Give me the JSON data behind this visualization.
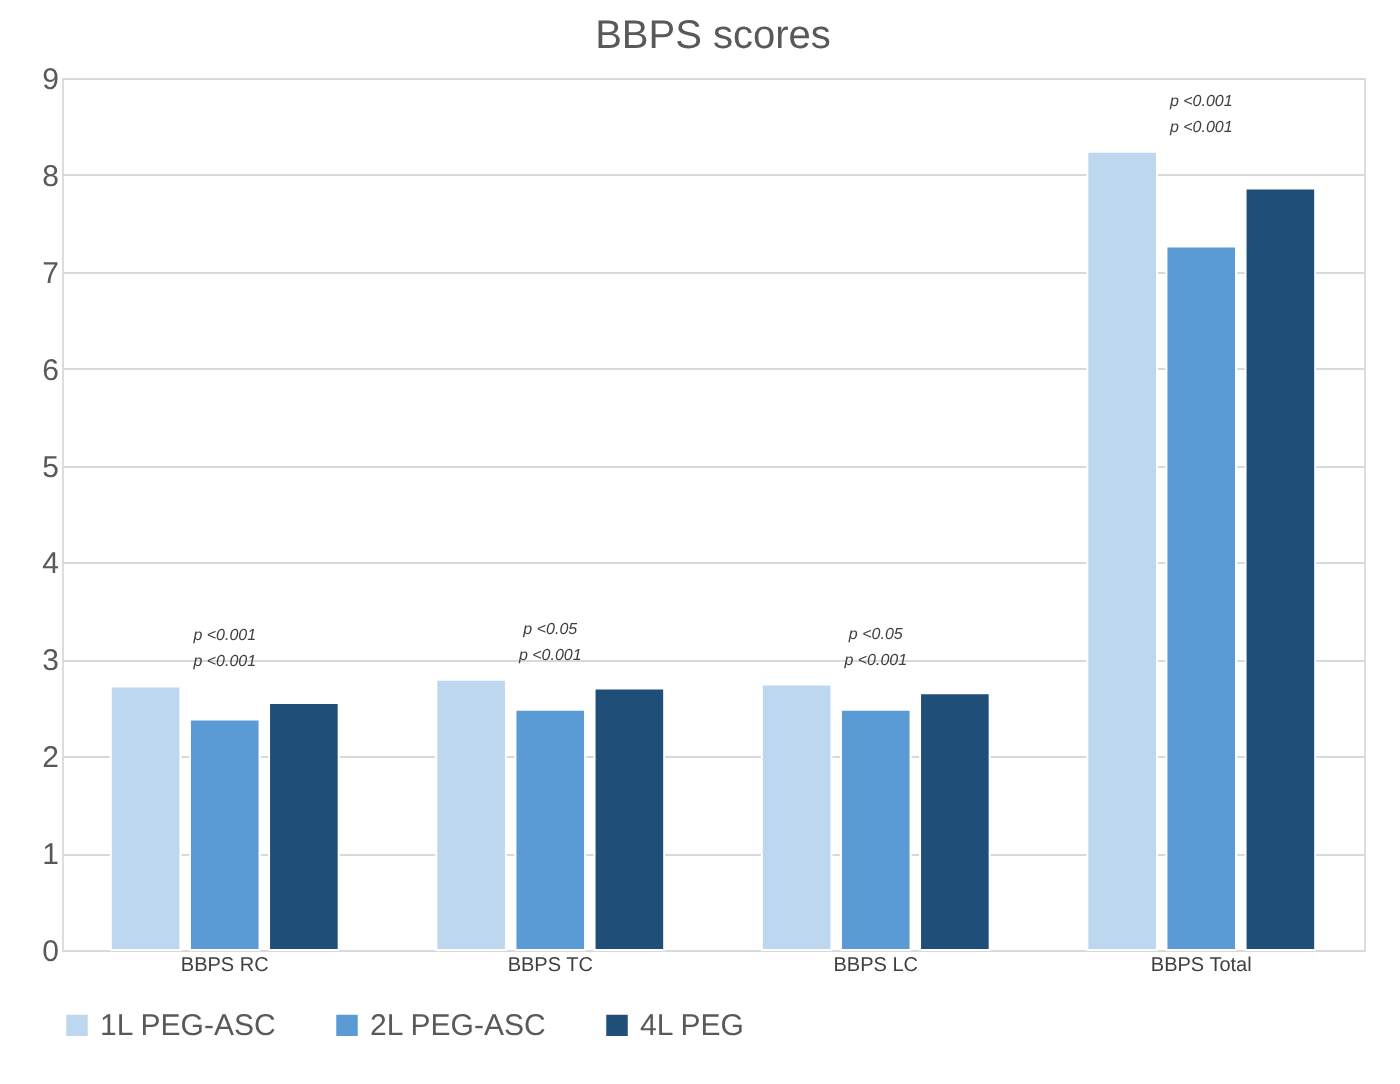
{
  "chart_data": {
    "type": "bar",
    "title": "BBPS scores",
    "categories": [
      "BBPS RC",
      "BBPS TC",
      "BBPS LC",
      "BBPS Total"
    ],
    "series": [
      {
        "name": "1L PEG-ASC",
        "color": "#bdd7ee",
        "values": [
          2.72,
          2.79,
          2.74,
          8.24
        ]
      },
      {
        "name": "2L PEG-ASC",
        "color": "#5b9bd5",
        "values": [
          2.38,
          2.48,
          2.48,
          7.26
        ]
      },
      {
        "name": "4L PEG",
        "color": "#1f4e79",
        "values": [
          2.55,
          2.7,
          2.65,
          7.86
        ]
      }
    ],
    "ylim": [
      0,
      9
    ],
    "yticks": [
      0,
      1,
      2,
      3,
      4,
      5,
      6,
      7,
      8,
      9
    ],
    "grid": "y",
    "legend": "bottom",
    "annotations": [
      "p <0.001",
      "p <0.001",
      "p <0.001",
      "p <0.05",
      "p <0.001",
      "p <0.05",
      "p <0.001",
      "p <0.001"
    ]
  }
}
